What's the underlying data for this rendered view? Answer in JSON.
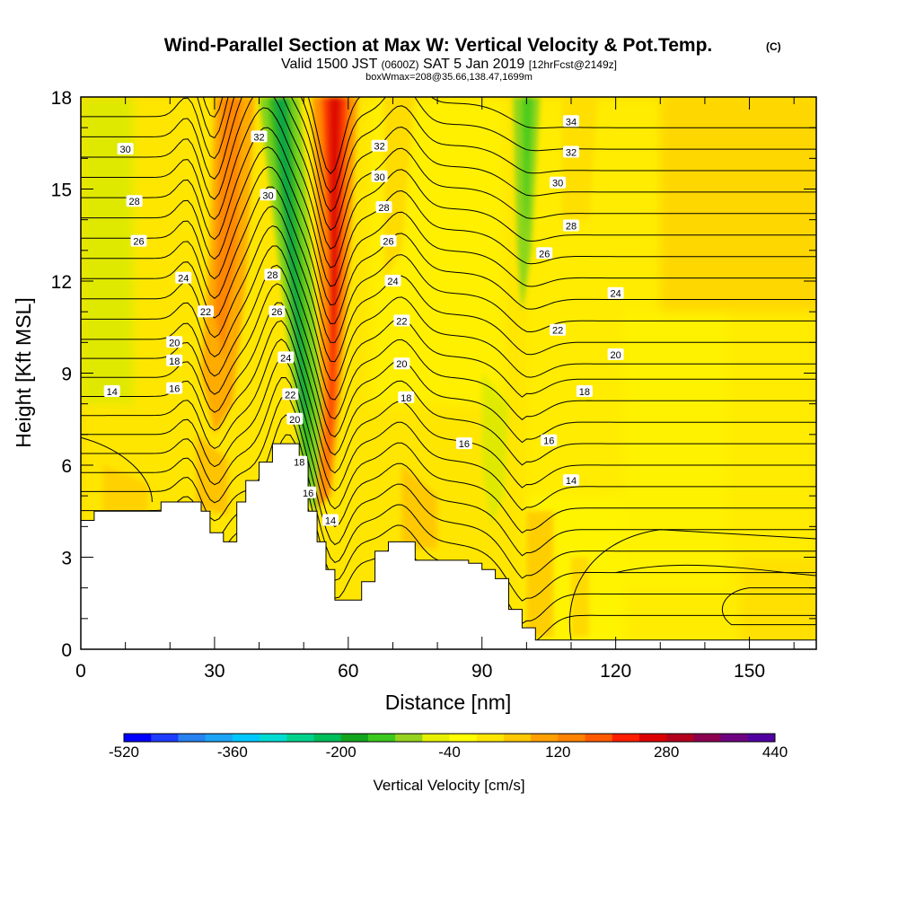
{
  "chart_data": {
    "type": "heatmap",
    "title": "Wind-Parallel Section at Max W: Vertical Velocity & Pot.Temp.",
    "title_mark": "(C)",
    "subtitle_parts": [
      "Valid 1500 JST ",
      "(0600Z)",
      " SAT 5 Jan 2019 ",
      "[12hrFcst@2149z]"
    ],
    "subtitle2": "boxWmax=208@35.66,138.47,1699m",
    "xlabel": "Distance [nm]",
    "ylabel": "Height [Kft MSL]",
    "xlim": [
      0,
      165
    ],
    "ylim": [
      0,
      18
    ],
    "x_ticks": [
      "0",
      "30",
      "60",
      "90",
      "120",
      "150"
    ],
    "x_tick_values": [
      0,
      30,
      60,
      90,
      120,
      150
    ],
    "y_ticks": [
      "0",
      "3",
      "6",
      "9",
      "12",
      "15",
      "18"
    ],
    "y_tick_values": [
      0,
      3,
      6,
      9,
      12,
      15,
      18
    ],
    "colorbar": {
      "label": "Vertical Velocity [cm/s]",
      "tick_labels": [
        "-520",
        "-360",
        "-200",
        "-40",
        "120",
        "280",
        "440"
      ],
      "tick_values": [
        -520,
        -360,
        -200,
        -40,
        120,
        280,
        440
      ],
      "colors": [
        "#0000ff",
        "#1e3cff",
        "#2882f0",
        "#1ca5f5",
        "#00c8ff",
        "#00dcd2",
        "#00d28c",
        "#00be5a",
        "#14a51e",
        "#3cc81e",
        "#96d21e",
        "#e6f000",
        "#ffff00",
        "#ffe600",
        "#ffc800",
        "#ffa000",
        "#ff8200",
        "#ff5a00",
        "#ff1e00",
        "#dc0000",
        "#b4001e",
        "#8c0050",
        "#6e0082",
        "#5000a0"
      ]
    },
    "vertical_velocity_features": [
      {
        "type": "updraft",
        "x": 57,
        "w_cm_s": 360,
        "description_value": "core"
      },
      {
        "type": "updraft",
        "x": 33,
        "w_cm_s": 140
      },
      {
        "type": "downdraft",
        "x": 47,
        "w_cm_s": -240
      },
      {
        "type": "downdraft",
        "x": 100,
        "w_cm_s": -120
      }
    ],
    "terrain_kft": [
      [
        0,
        4.2
      ],
      [
        3,
        4.2
      ],
      [
        3,
        4.5
      ],
      [
        18,
        4.5
      ],
      [
        18,
        4.8
      ],
      [
        27,
        4.8
      ],
      [
        27,
        4.5
      ],
      [
        29,
        4.5
      ],
      [
        29,
        3.8
      ],
      [
        32,
        3.8
      ],
      [
        32,
        3.5
      ],
      [
        35,
        3.5
      ],
      [
        35,
        4.8
      ],
      [
        37,
        4.8
      ],
      [
        37,
        5.5
      ],
      [
        40,
        5.5
      ],
      [
        40,
        6.1
      ],
      [
        43,
        6.1
      ],
      [
        43,
        6.7
      ],
      [
        49,
        6.7
      ],
      [
        49,
        6.1
      ],
      [
        51,
        6.1
      ],
      [
        51,
        4.5
      ],
      [
        53,
        4.5
      ],
      [
        53,
        3.5
      ],
      [
        55,
        3.5
      ],
      [
        55,
        2.6
      ],
      [
        57,
        2.6
      ],
      [
        57,
        1.6
      ],
      [
        63,
        1.6
      ],
      [
        63,
        2.2
      ],
      [
        66,
        2.2
      ],
      [
        66,
        3.2
      ],
      [
        69,
        3.2
      ],
      [
        69,
        3.5
      ],
      [
        75,
        3.5
      ],
      [
        75,
        2.9
      ],
      [
        81,
        2.9
      ],
      [
        81,
        2.9
      ],
      [
        87,
        2.9
      ],
      [
        87,
        2.8
      ],
      [
        90,
        2.8
      ],
      [
        90,
        2.6
      ],
      [
        93,
        2.6
      ],
      [
        93,
        2.3
      ],
      [
        96,
        2.3
      ],
      [
        96,
        1.3
      ],
      [
        99,
        1.3
      ],
      [
        99,
        0.7
      ],
      [
        102,
        0.7
      ],
      [
        102,
        0.3
      ],
      [
        104,
        0.3
      ],
      [
        104,
        0.3
      ],
      [
        165,
        0.3
      ],
      [
        165,
        0
      ],
      [
        0,
        0
      ]
    ],
    "isentropes": [
      {
        "label": "14",
        "label_pos": [
          [
            7,
            8.4
          ],
          [
            56,
            4.2
          ],
          [
            110,
            5.5
          ]
        ]
      },
      {
        "label": "16",
        "label_pos": [
          [
            21,
            8.5
          ],
          [
            51,
            5.1
          ],
          [
            86,
            6.7
          ],
          [
            105,
            6.8
          ]
        ]
      },
      {
        "label": "18",
        "label_pos": [
          [
            21,
            9.4
          ],
          [
            49,
            6.1
          ],
          [
            73,
            8.2
          ],
          [
            113,
            8.4
          ]
        ]
      },
      {
        "label": "20",
        "label_pos": [
          [
            21,
            10.0
          ],
          [
            48,
            7.5
          ],
          [
            72,
            9.3
          ],
          [
            120,
            9.6
          ]
        ]
      },
      {
        "label": "22",
        "label_pos": [
          [
            28,
            11.0
          ],
          [
            47,
            8.3
          ],
          [
            72,
            10.7
          ],
          [
            107,
            10.4
          ]
        ]
      },
      {
        "label": "24",
        "label_pos": [
          [
            23,
            12.1
          ],
          [
            46,
            9.5
          ],
          [
            70,
            12.0
          ],
          [
            120,
            11.6
          ]
        ]
      },
      {
        "label": "26",
        "label_pos": [
          [
            13,
            13.3
          ],
          [
            44,
            11.0
          ],
          [
            69,
            13.3
          ],
          [
            104,
            12.9
          ]
        ]
      },
      {
        "label": "28",
        "label_pos": [
          [
            12,
            14.6
          ],
          [
            43,
            12.2
          ],
          [
            68,
            14.4
          ],
          [
            110,
            13.8
          ]
        ]
      },
      {
        "label": "30",
        "label_pos": [
          [
            10,
            16.3
          ],
          [
            42,
            14.8
          ],
          [
            67,
            15.4
          ],
          [
            107,
            15.2
          ]
        ]
      },
      {
        "label": "32",
        "label_pos": [
          [
            40,
            16.7
          ],
          [
            67,
            16.4
          ],
          [
            110,
            16.2
          ]
        ]
      },
      {
        "label": "34",
        "label_pos": [
          [
            110,
            17.2
          ]
        ]
      }
    ]
  }
}
